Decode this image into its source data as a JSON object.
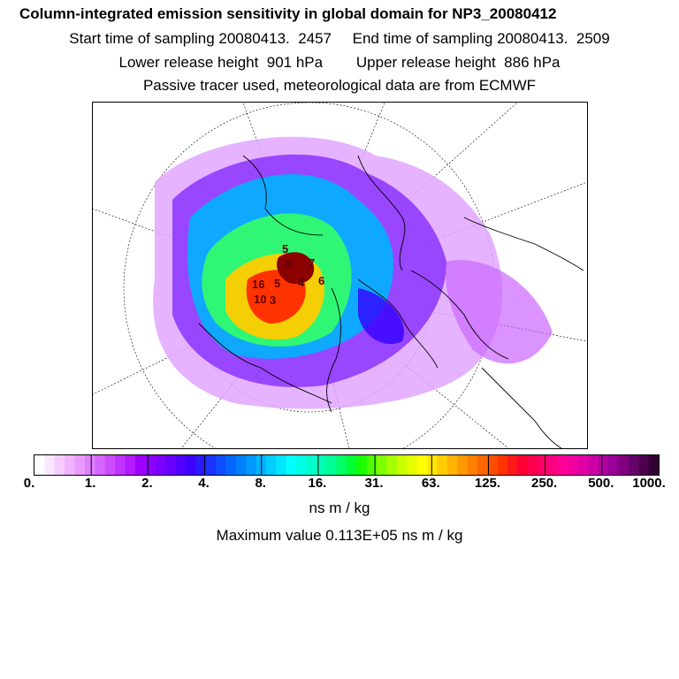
{
  "header": {
    "title": "Column-integrated emission sensitivity in global domain for NP3_20080412",
    "line1": "Start time of sampling 20080413.  2457     End time of sampling 20080413.  2509",
    "line2": "Lower release height  901 hPa        Upper release height  886 hPa",
    "line3": "Passive tracer used, meteorological data are from ECMWF"
  },
  "colorbar": {
    "ticks": [
      "0.",
      "1.",
      "2.",
      "4.",
      "8.",
      "16.",
      "31.",
      "63.",
      "125.",
      "250.",
      "500.",
      "1000."
    ],
    "unit": "ns m / kg",
    "max_label": "Maximum value  0.113E+05 ns m / kg",
    "colors": [
      "#ffffff",
      "#fbe6ff",
      "#f5ccff",
      "#efb3ff",
      "#e999ff",
      "#e080ff",
      "#d666ff",
      "#cc4dff",
      "#c033ff",
      "#b31aff",
      "#a000ff",
      "#8c00ff",
      "#7a00ff",
      "#6600ff",
      "#5200ff",
      "#3d00ff",
      "#2a1aff",
      "#1a33ff",
      "#0d4dff",
      "#0066ff",
      "#0080ff",
      "#0099ff",
      "#00b3ff",
      "#00ccff",
      "#00e6ff",
      "#00ffff",
      "#00ffe6",
      "#00ffcc",
      "#00ffb3",
      "#00ff99",
      "#00ff66",
      "#00ff33",
      "#1aff00",
      "#4dff00",
      "#80ff00",
      "#a6ff00",
      "#ccff00",
      "#e6ff00",
      "#ffff00",
      "#ffe600",
      "#ffcc00",
      "#ffb300",
      "#ff9900",
      "#ff8000",
      "#ff6600",
      "#ff4d00",
      "#ff3300",
      "#ff1a1a",
      "#ff0033",
      "#ff004d",
      "#ff0066",
      "#ff0080",
      "#ff0099",
      "#f000a0",
      "#e000a6",
      "#cc00a6",
      "#b300a0",
      "#990099",
      "#800080",
      "#66006b",
      "#4d0050",
      "#330033"
    ]
  },
  "map": {
    "labels": [
      "8",
      "7",
      "6",
      "16",
      "5",
      "4",
      "5",
      "10",
      "3"
    ]
  }
}
